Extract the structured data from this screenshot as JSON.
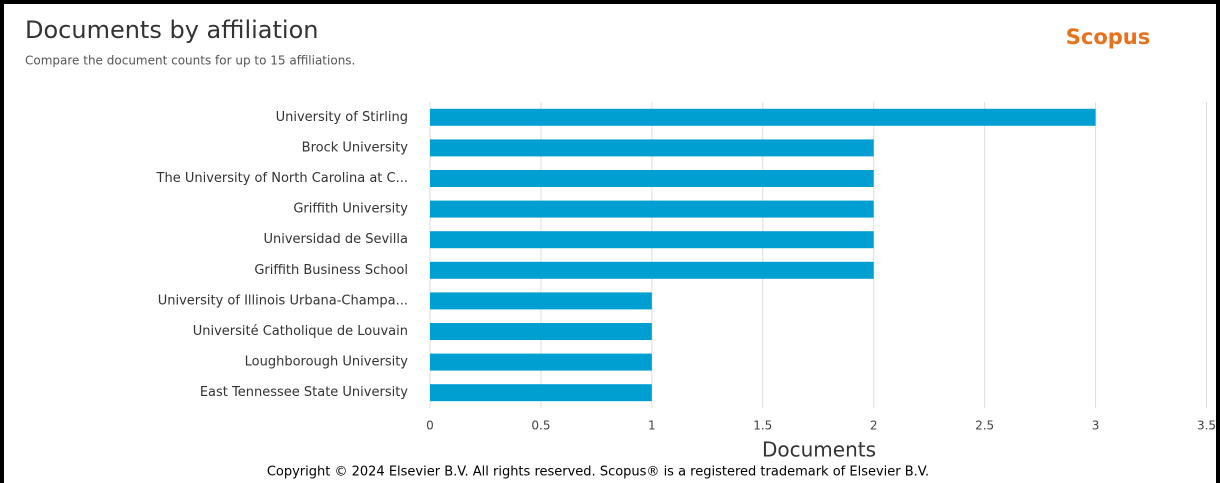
{
  "chart_data": {
    "type": "bar",
    "orientation": "horizontal",
    "title": "Documents by affiliation",
    "subtitle": "Compare the document counts for up to 15 affiliations.",
    "brand": "Scopus",
    "xlabel": "Documents",
    "footer": "Copyright © 2024 Elsevier B.V. All rights reserved. Scopus® is a registered trademark of Elsevier B.V.",
    "categories": [
      "University of Stirling",
      "Brock University",
      "The University of North Carolina at C...",
      "Griffith University",
      "Universidad de Sevilla",
      "Griffith Business School",
      "University of Illinois Urbana-Champa...",
      "Université Catholique de Louvain",
      "Loughborough University",
      "East Tennessee State University"
    ],
    "values": [
      3,
      2,
      2,
      2,
      2,
      2,
      1,
      1,
      1,
      1
    ],
    "color": "#009fd2",
    "xlim": [
      0,
      3.5
    ],
    "xticks": [
      0,
      0.5,
      1,
      1.5,
      2,
      2.5,
      3,
      3.5
    ],
    "grid": true
  }
}
